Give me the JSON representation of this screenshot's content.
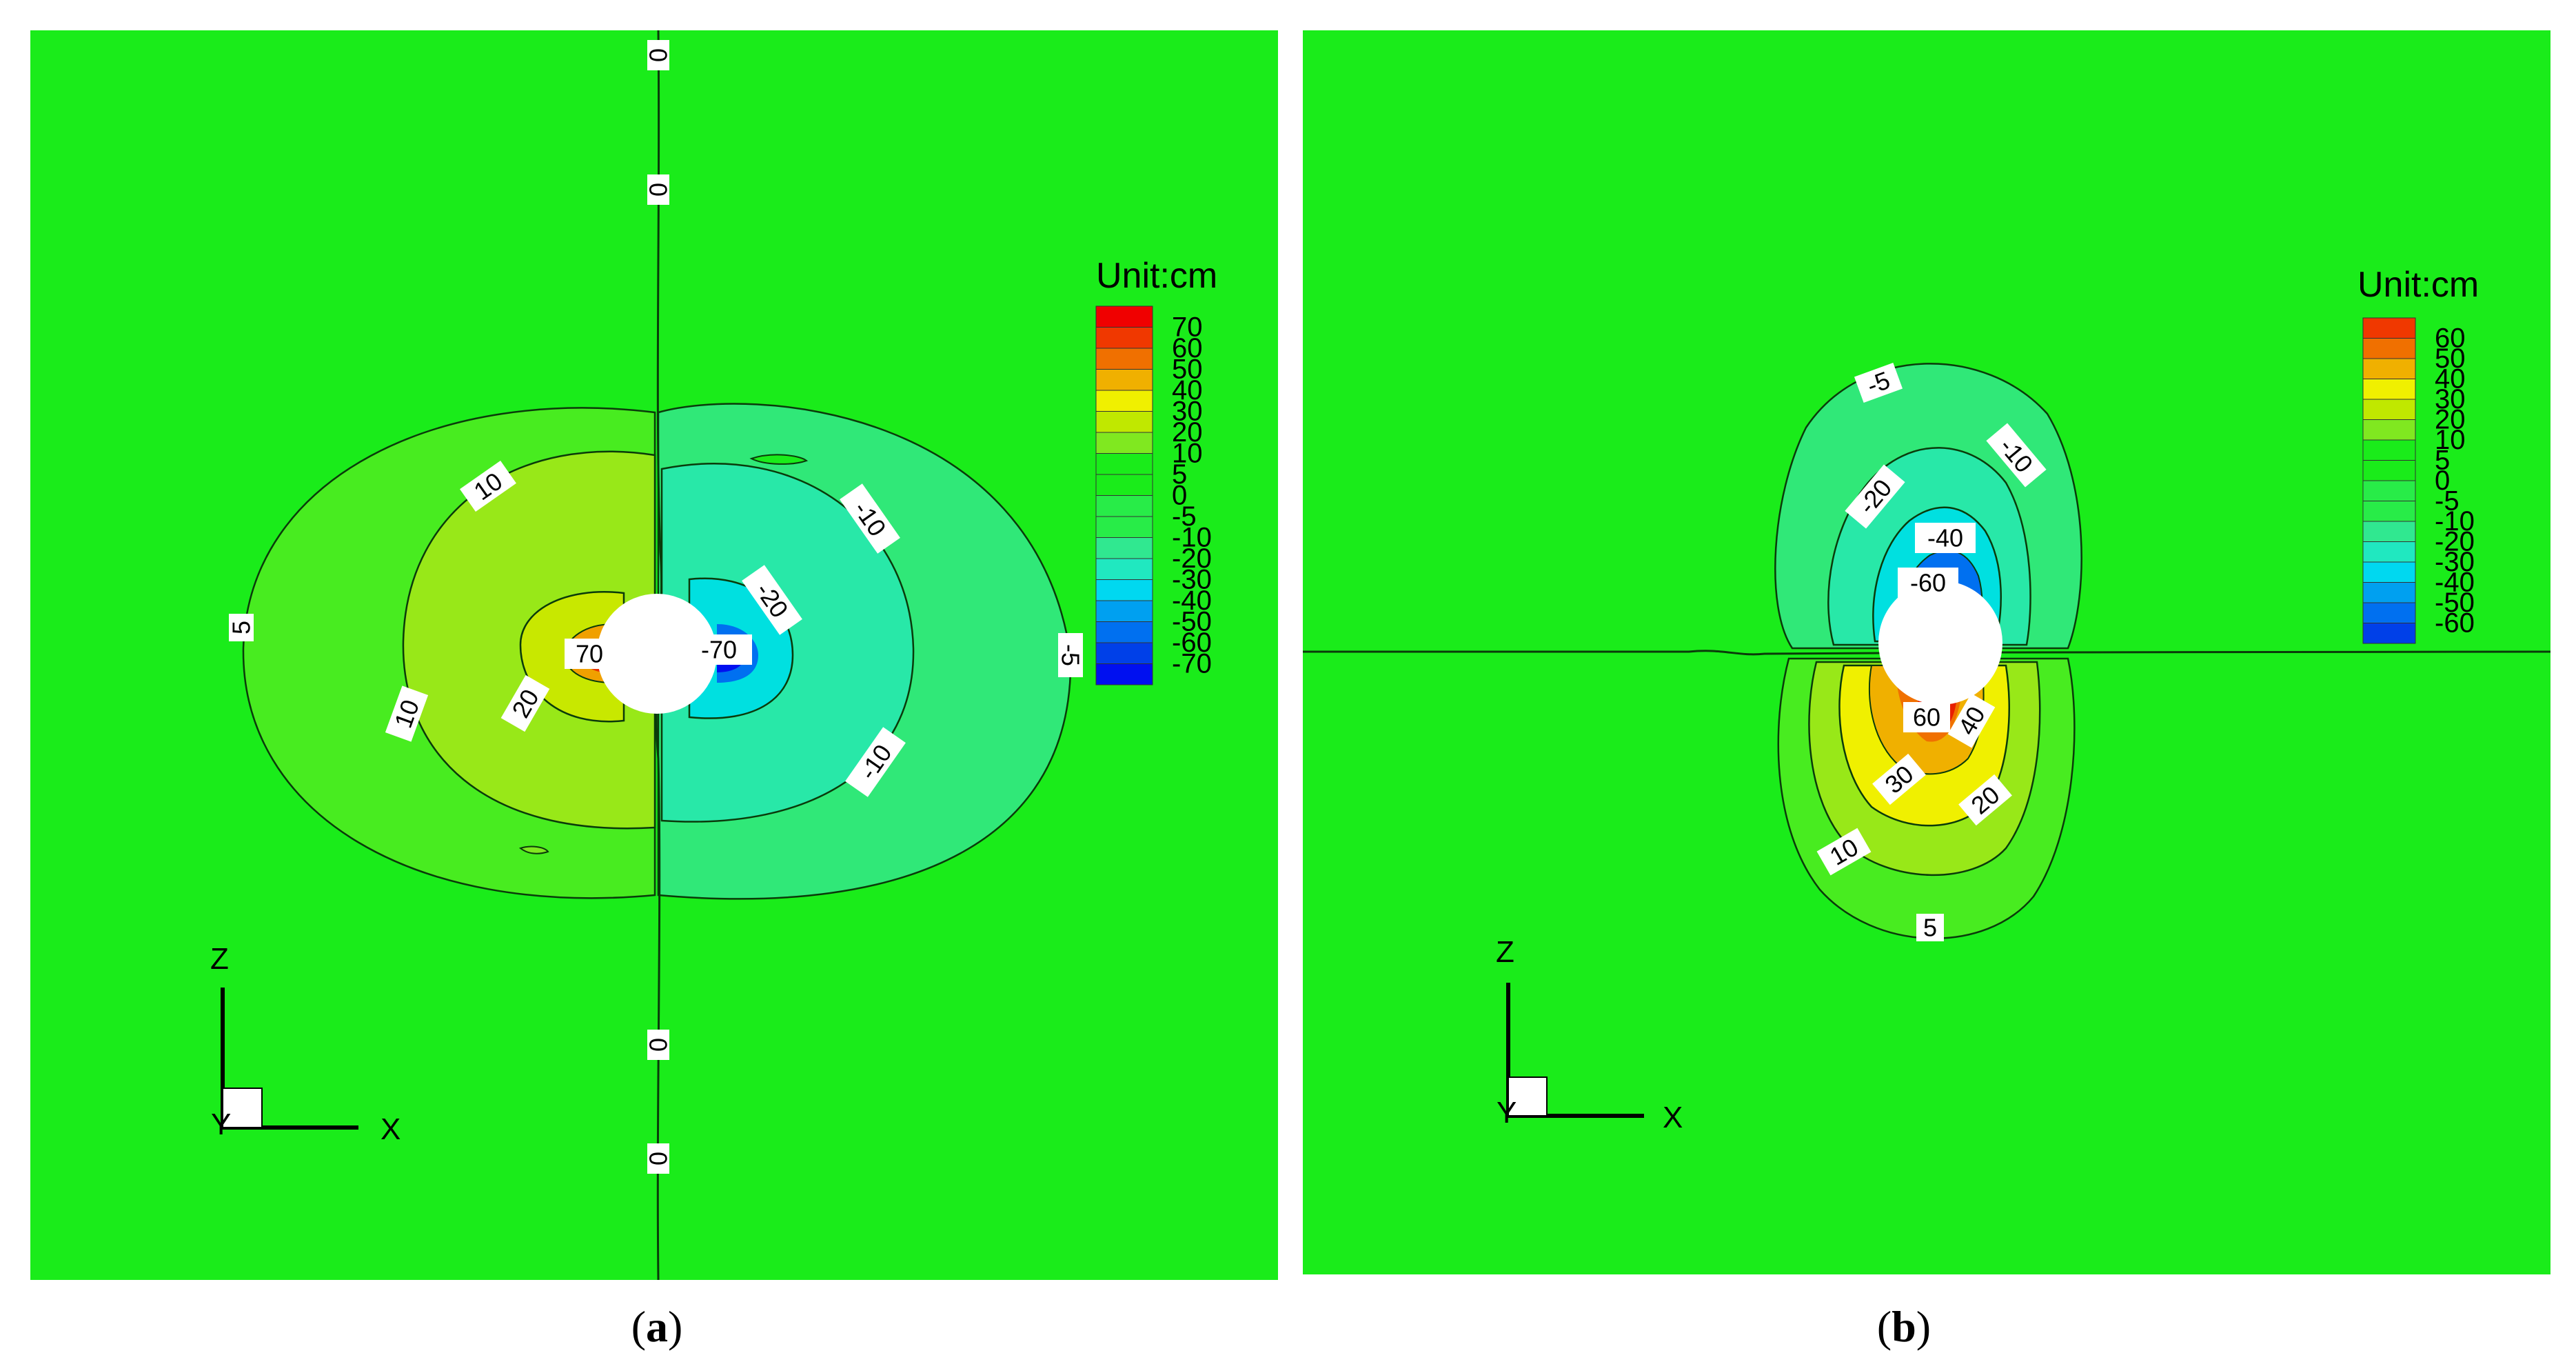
{
  "colors": {
    "background_field": "#1aec1a",
    "scale": [
      "#0010f0",
      "#0040e8",
      "#0070f0",
      "#00a0f0",
      "#00d8f0",
      "#20e8c0",
      "#30e890",
      "#28ec48",
      "#1aec1a",
      "#80e820",
      "#c0e800",
      "#f0f000",
      "#f0b000",
      "#f07000",
      "#f03800",
      "#f00000"
    ]
  },
  "chart_data": [
    {
      "type": "heatmap",
      "panel": "(a)",
      "panel_letter": "a",
      "legend_title": "Unit:cm",
      "legend_levels": [
        70,
        60,
        50,
        40,
        30,
        20,
        10,
        5,
        0,
        -5,
        -10,
        -20,
        -30,
        -40,
        -50,
        -60,
        -70
      ],
      "contour_labels": [
        "0",
        "0",
        "0",
        "0",
        "10",
        "5",
        "10",
        "20",
        "70",
        "-70",
        "-20",
        "-10",
        "-10",
        "-5"
      ],
      "axis_labels": {
        "vertical": "Z",
        "horizontal": "X",
        "out_of_plane": "Y"
      }
    },
    {
      "type": "heatmap",
      "panel": "(b)",
      "panel_letter": "b",
      "legend_title": "Unit:cm",
      "legend_levels": [
        60,
        50,
        40,
        30,
        20,
        10,
        5,
        0,
        -5,
        -10,
        -20,
        -30,
        -40,
        -50,
        -60
      ],
      "contour_labels": [
        "-5",
        "-10",
        "-20",
        "-40",
        "-60",
        "60",
        "40",
        "30",
        "20",
        "10",
        "5"
      ],
      "axis_labels": {
        "vertical": "Z",
        "horizontal": "X",
        "out_of_plane": "Y"
      }
    }
  ]
}
